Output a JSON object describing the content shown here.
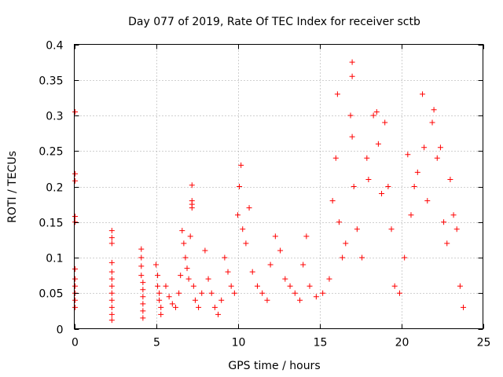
{
  "chart_data": {
    "type": "scatter",
    "title": "Day 077 of 2019, Rate Of TEC Index for receiver sctb",
    "xlabel": "GPS time / hours",
    "ylabel": "ROTI / TECUs",
    "xlim": [
      0,
      25
    ],
    "ylim": [
      0,
      0.4
    ],
    "x_ticks": [
      0,
      5,
      10,
      15,
      20,
      25
    ],
    "y_ticks": [
      0,
      0.05,
      0.1,
      0.15,
      0.2,
      0.25,
      0.3,
      0.35,
      0.4
    ],
    "x_tick_labels": [
      "0",
      "5",
      "10",
      "15",
      "20",
      "25"
    ],
    "y_tick_labels": [
      "0",
      "0.05",
      "0.1",
      "0.15",
      "0.2",
      "0.25",
      "0.3",
      "0.35",
      "0.4"
    ],
    "grid": true,
    "marker": "plus",
    "marker_color": "#ff0000",
    "series": [
      {
        "name": "ROTI",
        "points": [
          [
            0.05,
            0.305
          ],
          [
            0.05,
            0.218
          ],
          [
            0.05,
            0.208
          ],
          [
            0.05,
            0.158
          ],
          [
            0.05,
            0.15
          ],
          [
            0.05,
            0.084
          ],
          [
            0.05,
            0.07
          ],
          [
            0.05,
            0.06
          ],
          [
            0.05,
            0.05
          ],
          [
            0.05,
            0.04
          ],
          [
            0.05,
            0.03
          ],
          [
            2.3,
            0.138
          ],
          [
            2.3,
            0.128
          ],
          [
            2.3,
            0.12
          ],
          [
            2.3,
            0.093
          ],
          [
            2.3,
            0.08
          ],
          [
            2.3,
            0.07
          ],
          [
            2.3,
            0.06
          ],
          [
            2.3,
            0.05
          ],
          [
            2.3,
            0.04
          ],
          [
            2.3,
            0.03
          ],
          [
            2.3,
            0.02
          ],
          [
            2.3,
            0.012
          ],
          [
            4.1,
            0.112
          ],
          [
            4.1,
            0.1
          ],
          [
            4.1,
            0.088
          ],
          [
            4.1,
            0.075
          ],
          [
            4.2,
            0.065
          ],
          [
            4.2,
            0.055
          ],
          [
            4.2,
            0.045
          ],
          [
            4.2,
            0.035
          ],
          [
            4.2,
            0.025
          ],
          [
            4.2,
            0.015
          ],
          [
            5.0,
            0.09
          ],
          [
            5.1,
            0.075
          ],
          [
            5.1,
            0.06
          ],
          [
            5.2,
            0.05
          ],
          [
            5.2,
            0.04
          ],
          [
            5.3,
            0.03
          ],
          [
            5.3,
            0.02
          ],
          [
            5.6,
            0.06
          ],
          [
            5.8,
            0.045
          ],
          [
            6.0,
            0.035
          ],
          [
            6.2,
            0.03
          ],
          [
            6.4,
            0.05
          ],
          [
            6.5,
            0.075
          ],
          [
            6.6,
            0.138
          ],
          [
            6.7,
            0.12
          ],
          [
            6.8,
            0.1
          ],
          [
            6.9,
            0.085
          ],
          [
            7.0,
            0.07
          ],
          [
            7.1,
            0.13
          ],
          [
            7.2,
            0.202
          ],
          [
            7.2,
            0.18
          ],
          [
            7.2,
            0.175
          ],
          [
            7.2,
            0.17
          ],
          [
            7.3,
            0.06
          ],
          [
            7.4,
            0.04
          ],
          [
            7.6,
            0.03
          ],
          [
            7.8,
            0.05
          ],
          [
            8.0,
            0.11
          ],
          [
            8.2,
            0.07
          ],
          [
            8.4,
            0.05
          ],
          [
            8.6,
            0.03
          ],
          [
            8.8,
            0.02
          ],
          [
            9.0,
            0.04
          ],
          [
            9.2,
            0.1
          ],
          [
            9.4,
            0.08
          ],
          [
            9.6,
            0.06
          ],
          [
            9.8,
            0.05
          ],
          [
            10.0,
            0.16
          ],
          [
            10.1,
            0.2
          ],
          [
            10.2,
            0.23
          ],
          [
            10.3,
            0.14
          ],
          [
            10.5,
            0.12
          ],
          [
            10.7,
            0.17
          ],
          [
            10.9,
            0.08
          ],
          [
            11.2,
            0.06
          ],
          [
            11.5,
            0.05
          ],
          [
            11.8,
            0.04
          ],
          [
            12.0,
            0.09
          ],
          [
            12.3,
            0.13
          ],
          [
            12.6,
            0.11
          ],
          [
            12.9,
            0.07
          ],
          [
            13.2,
            0.06
          ],
          [
            13.5,
            0.05
          ],
          [
            13.8,
            0.04
          ],
          [
            14.0,
            0.09
          ],
          [
            14.2,
            0.13
          ],
          [
            14.4,
            0.06
          ],
          [
            14.8,
            0.045
          ],
          [
            15.2,
            0.05
          ],
          [
            15.6,
            0.07
          ],
          [
            15.8,
            0.18
          ],
          [
            16.0,
            0.24
          ],
          [
            16.1,
            0.33
          ],
          [
            16.2,
            0.15
          ],
          [
            16.4,
            0.1
          ],
          [
            16.6,
            0.12
          ],
          [
            16.9,
            0.3
          ],
          [
            17.0,
            0.375
          ],
          [
            17.0,
            0.355
          ],
          [
            17.0,
            0.27
          ],
          [
            17.1,
            0.2
          ],
          [
            17.3,
            0.14
          ],
          [
            17.6,
            0.1
          ],
          [
            17.9,
            0.24
          ],
          [
            18.0,
            0.21
          ],
          [
            18.3,
            0.3
          ],
          [
            18.5,
            0.305
          ],
          [
            18.6,
            0.26
          ],
          [
            18.8,
            0.19
          ],
          [
            19.0,
            0.29
          ],
          [
            19.2,
            0.2
          ],
          [
            19.4,
            0.14
          ],
          [
            19.6,
            0.06
          ],
          [
            19.9,
            0.05
          ],
          [
            20.2,
            0.1
          ],
          [
            20.4,
            0.245
          ],
          [
            20.6,
            0.16
          ],
          [
            20.8,
            0.2
          ],
          [
            21.0,
            0.22
          ],
          [
            21.3,
            0.33
          ],
          [
            21.4,
            0.255
          ],
          [
            21.6,
            0.18
          ],
          [
            21.9,
            0.29
          ],
          [
            22.0,
            0.308
          ],
          [
            22.2,
            0.24
          ],
          [
            22.4,
            0.255
          ],
          [
            22.6,
            0.15
          ],
          [
            22.8,
            0.12
          ],
          [
            23.0,
            0.21
          ],
          [
            23.2,
            0.16
          ],
          [
            23.4,
            0.14
          ],
          [
            23.6,
            0.06
          ],
          [
            23.8,
            0.03
          ]
        ]
      }
    ]
  }
}
